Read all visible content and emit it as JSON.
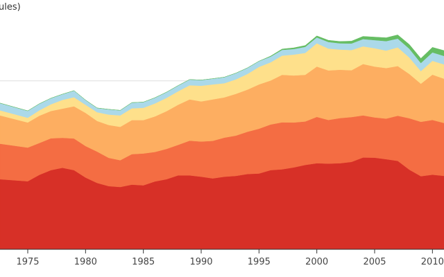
{
  "chart_data": {
    "type": "area",
    "stacked": true,
    "title": "",
    "ylabel_visible": "ules)",
    "xlabel": "",
    "x_tick_labels": [
      "1975",
      "1980",
      "1985",
      "1990",
      "1995",
      "2000",
      "2005",
      "2010"
    ],
    "xlim": [
      1972.6,
      2011.0
    ],
    "ylim": [
      0,
      1.48
    ],
    "grid_y": [
      1.0
    ],
    "grid": "horizontal",
    "legend": "none",
    "x": [
      1972.6,
      1975,
      1976,
      1977,
      1978,
      1979,
      1980,
      1981,
      1982,
      1983,
      1984,
      1985,
      1986,
      1987,
      1988,
      1989,
      1990,
      1991,
      1992,
      1993,
      1994,
      1995,
      1996,
      1997,
      1998,
      1999,
      2000,
      2001,
      2002,
      2003,
      2004,
      2005,
      2006,
      2007,
      2008,
      2009,
      2010,
      2011
    ],
    "series": [
      {
        "color": "#d73027",
        "values": [
          0.416,
          0.404,
          0.442,
          0.47,
          0.484,
          0.47,
          0.426,
          0.394,
          0.375,
          0.37,
          0.384,
          0.38,
          0.403,
          0.416,
          0.439,
          0.439,
          0.431,
          0.421,
          0.431,
          0.436,
          0.447,
          0.45,
          0.47,
          0.475,
          0.486,
          0.501,
          0.511,
          0.509,
          0.511,
          0.519,
          0.545,
          0.544,
          0.535,
          0.525,
          0.473,
          0.434,
          0.443,
          0.436
        ]
      },
      {
        "color": "#f46d43",
        "values": [
          0.211,
          0.2,
          0.189,
          0.189,
          0.178,
          0.188,
          0.187,
          0.186,
          0.168,
          0.159,
          0.181,
          0.189,
          0.175,
          0.18,
          0.181,
          0.206,
          0.209,
          0.223,
          0.232,
          0.239,
          0.251,
          0.266,
          0.271,
          0.279,
          0.267,
          0.258,
          0.275,
          0.259,
          0.268,
          0.266,
          0.25,
          0.239,
          0.241,
          0.268,
          0.305,
          0.323,
          0.325,
          0.314
        ]
      },
      {
        "color": "#fdae61",
        "values": [
          0.168,
          0.149,
          0.162,
          0.162,
          0.173,
          0.191,
          0.197,
          0.182,
          0.195,
          0.198,
          0.202,
          0.198,
          0.211,
          0.224,
          0.238,
          0.245,
          0.238,
          0.246,
          0.239,
          0.248,
          0.25,
          0.263,
          0.261,
          0.282,
          0.279,
          0.277,
          0.299,
          0.294,
          0.287,
          0.278,
          0.305,
          0.302,
          0.3,
          0.295,
          0.263,
          0.226,
          0.269,
          0.263
        ]
      },
      {
        "color": "#fee08b",
        "values": [
          0.03,
          0.028,
          0.032,
          0.04,
          0.052,
          0.054,
          0.048,
          0.052,
          0.062,
          0.068,
          0.07,
          0.073,
          0.077,
          0.079,
          0.08,
          0.084,
          0.093,
          0.089,
          0.084,
          0.086,
          0.093,
          0.104,
          0.108,
          0.114,
          0.124,
          0.13,
          0.138,
          0.13,
          0.12,
          0.12,
          0.105,
          0.109,
          0.104,
          0.111,
          0.098,
          0.075,
          0.082,
          0.085
        ]
      },
      {
        "color": "#abd9e9",
        "values": [
          0.043,
          0.041,
          0.039,
          0.036,
          0.034,
          0.039,
          0.028,
          0.025,
          0.031,
          0.03,
          0.034,
          0.034,
          0.034,
          0.034,
          0.034,
          0.034,
          0.034,
          0.034,
          0.036,
          0.037,
          0.036,
          0.034,
          0.034,
          0.034,
          0.033,
          0.036,
          0.035,
          0.039,
          0.037,
          0.039,
          0.043,
          0.048,
          0.056,
          0.052,
          0.052,
          0.048,
          0.05,
          0.05
        ]
      },
      {
        "color": "#66bd63",
        "values": [
          0.0,
          0.0,
          0.0,
          0.0,
          0.0,
          0.0,
          0.0,
          0.0,
          0.0,
          0.0,
          0.0,
          0.0,
          0.0,
          0.0,
          0.0,
          0.0,
          0.0,
          0.0,
          0.0,
          0.0,
          0.0,
          0.0,
          0.003,
          0.005,
          0.007,
          0.008,
          0.009,
          0.01,
          0.011,
          0.014,
          0.016,
          0.018,
          0.02,
          0.022,
          0.025,
          0.027,
          0.03,
          0.032
        ]
      }
    ]
  }
}
